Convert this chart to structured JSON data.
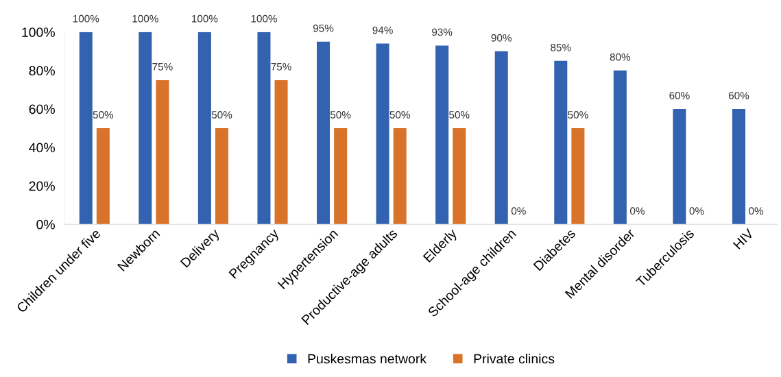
{
  "chart_data": {
    "type": "bar",
    "categories": [
      "Children under five",
      "Newborn",
      "Delivery",
      "Pregnancy",
      "Hypertension",
      "Productive-age adults",
      "Elderly",
      "School-age children",
      "Diabetes",
      "Mental disorder",
      "Tuberculosis",
      "HIV"
    ],
    "series": [
      {
        "name": "Puskesmas network",
        "color": "#3362b0",
        "values": [
          100,
          100,
          100,
          100,
          95,
          94,
          93,
          90,
          85,
          80,
          60,
          60
        ]
      },
      {
        "name": "Private clinics",
        "color": "#d9732a",
        "values": [
          50,
          75,
          50,
          75,
          50,
          50,
          50,
          0,
          50,
          0,
          0,
          0
        ]
      }
    ],
    "ylim": [
      0,
      100
    ],
    "yticks": [
      {
        "value": 0,
        "label": "0%"
      },
      {
        "value": 20,
        "label": "20%"
      },
      {
        "value": 40,
        "label": "40%"
      },
      {
        "value": 60,
        "label": "60%"
      },
      {
        "value": 80,
        "label": "80%"
      },
      {
        "value": 100,
        "label": "100%"
      }
    ],
    "value_labels": [
      [
        "100%",
        "100%",
        "100%",
        "100%",
        "95%",
        "94%",
        "93%",
        "90%",
        "85%",
        "80%",
        "60%",
        "60%"
      ],
      [
        "50%",
        "75%",
        "50%",
        "75%",
        "50%",
        "50%",
        "50%",
        "0%",
        "50%",
        "0%",
        "0%",
        "0%"
      ]
    ],
    "grid": false,
    "legend": "bottom"
  }
}
